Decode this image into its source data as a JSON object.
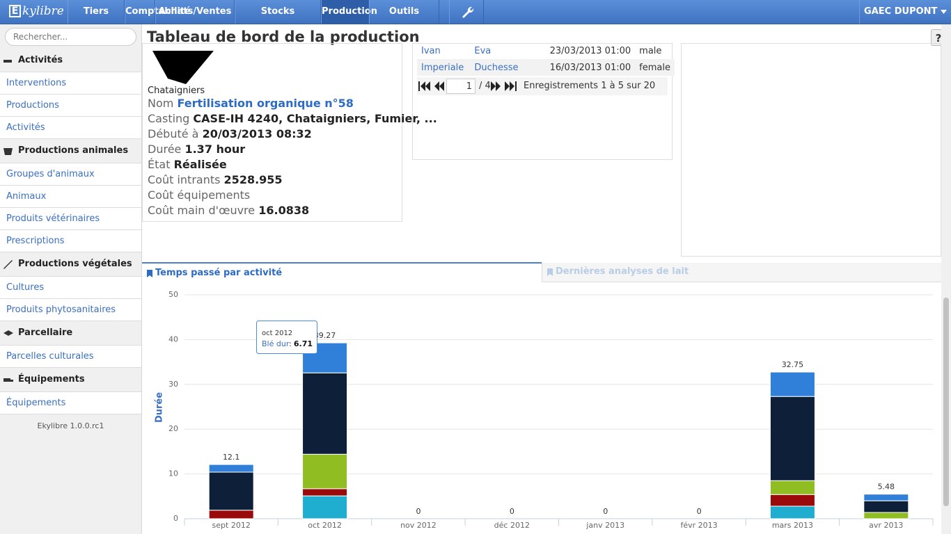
{
  "nav": {
    "logo_letter": "E",
    "logo_text": "kylibre",
    "items": [
      "Tiers",
      "Comptabilité",
      "Achats/Ventes",
      "Stocks",
      "Production",
      "Outils"
    ],
    "active": "Production",
    "account": "GAEC DUPONT"
  },
  "sidebar": {
    "search_placeholder": "Rechercher...",
    "sections": [
      {
        "title": "Activités",
        "links": [
          "Interventions",
          "Productions",
          "Activités"
        ]
      },
      {
        "title": "Productions animales",
        "links": [
          "Groupes d'animaux",
          "Animaux",
          "Produits vétérinaires",
          "Prescriptions"
        ]
      },
      {
        "title": "Productions végétales",
        "links": [
          "Cultures",
          "Produits phytosanitaires"
        ]
      },
      {
        "title": "Parcellaire",
        "links": [
          "Parcelles culturales"
        ]
      },
      {
        "title": "Équipements",
        "links": [
          "Équipements"
        ]
      }
    ],
    "footer": "Ekylibre 1.0.0.rc1"
  },
  "page": {
    "title": "Tableau de bord de la production",
    "help": "?"
  },
  "intervention": {
    "place": "Chataigniers",
    "fields": [
      {
        "label": "Nom",
        "value": "Fertilisation organique n°58"
      },
      {
        "label": "Casting",
        "value": "CASE-IH 4240, Chataigniers, Fumier, ..."
      },
      {
        "label": "Débuté à",
        "value": "20/03/2013 08:32"
      },
      {
        "label": "Durée",
        "value": "1.37 hour"
      },
      {
        "label": "État",
        "value": "Réalisée"
      },
      {
        "label": "Coût intrants",
        "value": "2528.955"
      },
      {
        "label": "Coût équipements"
      },
      {
        "label": "Coût main d'œuvre",
        "value": "16.0838"
      }
    ]
  },
  "animals": {
    "rows": [
      [
        "Ivan",
        "Eva",
        "23/03/2013 01:00",
        "male"
      ],
      [
        "Imperiale",
        "Duchesse",
        "16/03/2013 01:00",
        "female"
      ]
    ],
    "pager": {
      "page": "1",
      "pages": "/ 4",
      "records": "Enregistrements 1 à 5 sur 20"
    }
  },
  "tabs": [
    "Temps passé par activité",
    "Dernières analyses de lait"
  ],
  "chart_data": {
    "type": "stacked-bar",
    "y_label": "Durée",
    "categories": [
      "sept 2012",
      "oct 2012",
      "nov 2012",
      "déc 2012",
      "janv 2013",
      "févr 2013",
      "mars 2013",
      "avr 2013"
    ],
    "series": [
      {
        "color": "#1fadd0",
        "values": [
          0,
          5.1,
          0,
          0,
          0,
          0,
          2.8,
          0
        ]
      },
      {
        "color": "#9a0a0a",
        "values": [
          1.9,
          1.6,
          0,
          0,
          0,
          0,
          2.6,
          0
        ]
      },
      {
        "color": "#8fbd22",
        "values": [
          0,
          7.7,
          0,
          0,
          0,
          0,
          3.1,
          1.4
        ]
      },
      {
        "color": "#0e2039",
        "values": [
          8.5,
          18.16,
          0,
          0,
          0,
          0,
          18.8,
          2.6
        ]
      },
      {
        "name": "Blé dur",
        "color": "#3080da",
        "values": [
          1.7,
          6.71,
          0,
          0,
          0,
          0,
          5.45,
          1.48
        ]
      }
    ],
    "totals": [
      12.1,
      39.27,
      0,
      0,
      0,
      0,
      32.75,
      5.48
    ],
    "ylim": [
      0,
      50
    ],
    "yticks": [
      0,
      10,
      20,
      30,
      40,
      50
    ],
    "grid": true,
    "tooltip": {
      "separator": ":"
    }
  }
}
